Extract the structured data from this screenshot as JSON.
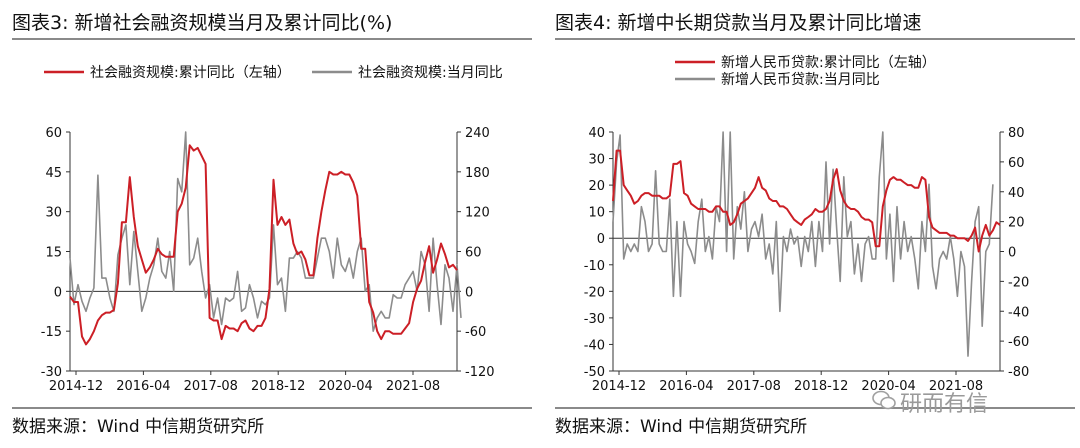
{
  "panels": [
    {
      "title": "图表3:  新增社会融资规模当月及累计同比(%)",
      "source": "数据来源：Wind 中信期货研究所",
      "chart_data": {
        "type": "line",
        "title": "新增社会融资规模当月及累计同比(%)",
        "x_tick_labels": [
          "2014-12",
          "2016-04",
          "2017-08",
          "2018-12",
          "2020-04",
          "2021-08"
        ],
        "left_axis": {
          "ylim": [
            -30,
            60
          ],
          "ticks": [
            -30,
            -15,
            0,
            15,
            30,
            45,
            60
          ]
        },
        "right_axis": {
          "ylim": [
            -120,
            240
          ],
          "ticks": [
            -120,
            -60,
            0,
            60,
            120,
            180,
            240
          ]
        },
        "legend_position": "top",
        "series": [
          {
            "name": "社会融资规模:累计同比（左轴）",
            "axis": "left",
            "color": "#cc1f26",
            "values": [
              -2,
              -4,
              -4,
              -17,
              -20,
              -18,
              -15,
              -11,
              -9,
              -8,
              -8,
              -7,
              3,
              26,
              26,
              43,
              28,
              17,
              12,
              7,
              9,
              12,
              16,
              14,
              13,
              13,
              13,
              30,
              33,
              39,
              55,
              53,
              54,
              51,
              48,
              -10,
              -11,
              -11,
              -18,
              -13,
              -14,
              -14,
              -15,
              -12,
              -11,
              -14,
              -15,
              -13,
              -13,
              -10,
              1,
              42,
              25,
              28,
              25,
              27,
              18,
              14,
              15,
              12,
              6,
              6,
              20,
              30,
              38,
              45,
              44,
              44,
              45,
              44,
              44,
              41,
              36,
              16,
              16,
              -4,
              -8,
              -15,
              -18,
              -15,
              -15,
              -16,
              -16,
              -16,
              -14,
              -12,
              -4,
              1,
              4,
              11,
              17,
              7,
              12,
              18,
              14,
              9,
              10,
              8
            ]
          },
          {
            "name": "社会融资规模:当月同比",
            "axis": "right",
            "color": "#8c8c8c",
            "values": [
              50,
              -20,
              10,
              -15,
              -30,
              -10,
              5,
              175,
              20,
              20,
              -10,
              -30,
              55,
              80,
              100,
              10,
              90,
              30,
              -30,
              -10,
              20,
              40,
              80,
              30,
              20,
              60,
              0,
              170,
              150,
              240,
              40,
              50,
              80,
              30,
              -10,
              10,
              -40,
              -10,
              -50,
              -10,
              -15,
              -10,
              30,
              -30,
              -25,
              10,
              -10,
              -40,
              -15,
              -20,
              -10,
              100,
              10,
              20,
              -30,
              50,
              50,
              60,
              50,
              20,
              20,
              20,
              50,
              80,
              80,
              60,
              20,
              80,
              40,
              30,
              50,
              20,
              60,
              80,
              0,
              10,
              -60,
              -40,
              -30,
              -40,
              -40,
              -5,
              -10,
              -10,
              10,
              20,
              30,
              0,
              60,
              40,
              -30,
              80,
              10,
              -50,
              40,
              20,
              -30,
              40,
              -40
            ]
          }
        ]
      }
    },
    {
      "title": "图表4:  新增中长期贷款当月及累计同比增速",
      "source": "数据来源：Wind 中信期货研究所",
      "chart_data": {
        "type": "line",
        "title": "新增中长期贷款当月及累计同比增速",
        "x_tick_labels": [
          "2014-12",
          "2016-04",
          "2017-08",
          "2018-12",
          "2020-04",
          "2021-08"
        ],
        "left_axis": {
          "ylim": [
            -50,
            40
          ],
          "ticks": [
            -50,
            -40,
            -30,
            -20,
            -10,
            0,
            10,
            20,
            30,
            40
          ]
        },
        "right_axis": {
          "ylim": [
            -80,
            80
          ],
          "ticks": [
            -80,
            -60,
            -40,
            -20,
            0,
            20,
            40,
            60,
            80
          ]
        },
        "legend_position": "top",
        "series": [
          {
            "name": "新增人民币贷款:累计同比（左轴）",
            "axis": "left",
            "color": "#cc1f26",
            "values": [
              14,
              33,
              33,
              20,
              18,
              16,
              13,
              14,
              16,
              17,
              17,
              16,
              16,
              16,
              15,
              15,
              16,
              28,
              28,
              29,
              17,
              16,
              13,
              12,
              11,
              11,
              11,
              10,
              10,
              12,
              12,
              10,
              10,
              5,
              6,
              9,
              13,
              14,
              15,
              17,
              19,
              23,
              19,
              18,
              15,
              14,
              14,
              12,
              12,
              11,
              9,
              7,
              6,
              5,
              7,
              8,
              9,
              11,
              10,
              10,
              11,
              14,
              22,
              26,
              18,
              14,
              12,
              11,
              11,
              10,
              8,
              7,
              7,
              6,
              -3,
              -3,
              12,
              18,
              22,
              23,
              22,
              22,
              21,
              20,
              20,
              19,
              19,
              23,
              22,
              8,
              4,
              3,
              2,
              2,
              2,
              1,
              1,
              0,
              0,
              0,
              -1,
              1,
              4,
              -5,
              1,
              5,
              1,
              3,
              6,
              5
            ]
          },
          {
            "name": "新增人民币贷款:当月同比",
            "axis": "right",
            "color": "#8c8c8c",
            "values": [
              20,
              60,
              78,
              -5,
              5,
              0,
              5,
              0,
              30,
              20,
              0,
              5,
              54,
              5,
              0,
              0,
              35,
              -30,
              20,
              -30,
              20,
              5,
              0,
              -8,
              20,
              35,
              0,
              10,
              -5,
              30,
              20,
              80,
              0,
              80,
              -5,
              30,
              15,
              40,
              0,
              15,
              20,
              10,
              25,
              -5,
              5,
              -15,
              20,
              -40,
              10,
              0,
              15,
              5,
              10,
              -10,
              10,
              0,
              20,
              -10,
              20,
              0,
              60,
              5,
              55,
              15,
              -20,
              50,
              10,
              20,
              -15,
              5,
              -20,
              5,
              10,
              -5,
              -5,
              50,
              80,
              -5,
              25,
              -20,
              30,
              -5,
              20,
              0,
              10,
              -5,
              -25,
              20,
              0,
              45,
              -10,
              -25,
              -5,
              0,
              -5,
              10,
              -5,
              -30,
              0,
              -10,
              -70,
              -20,
              20,
              30,
              -50,
              0,
              5,
              45
            ]
          }
        ]
      }
    }
  ],
  "watermark": "研而有信"
}
